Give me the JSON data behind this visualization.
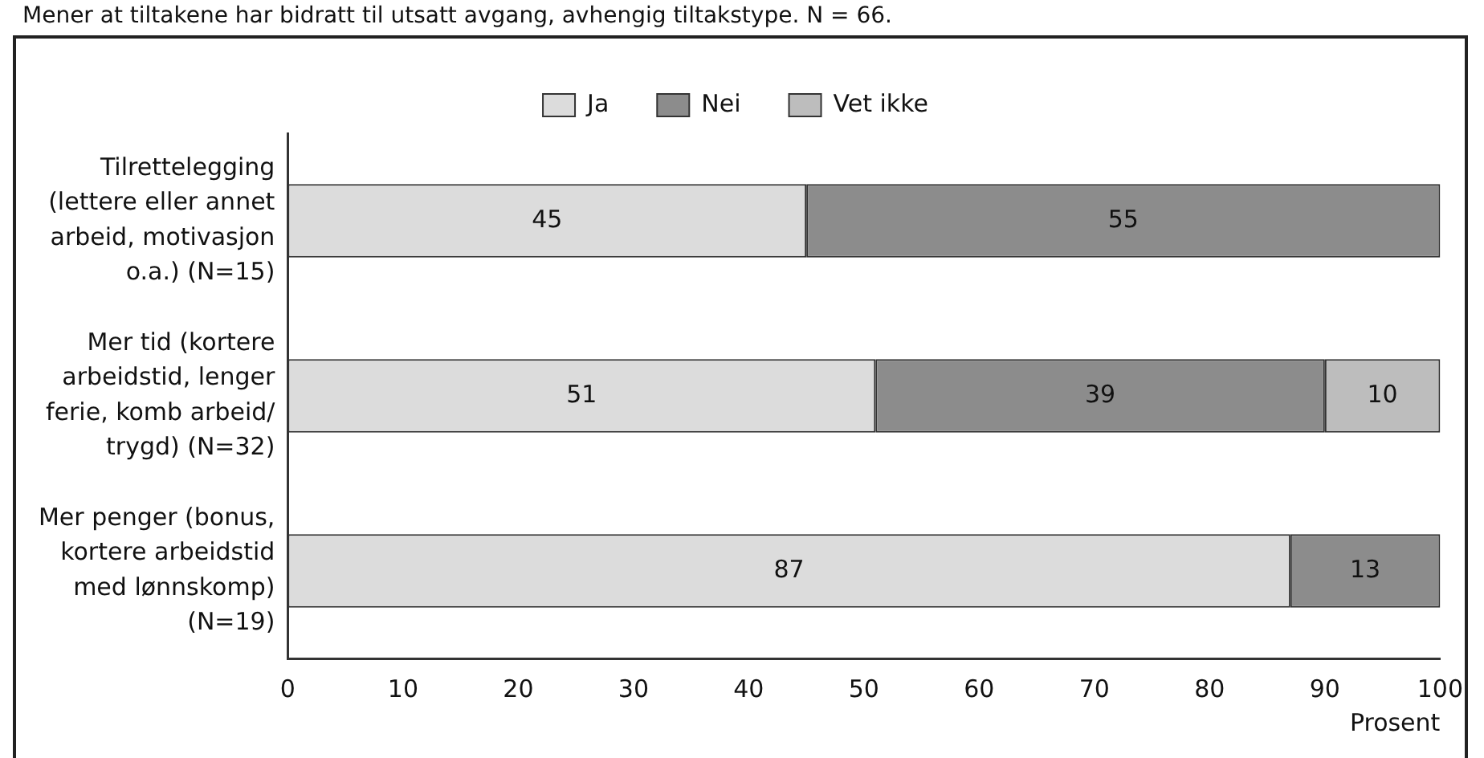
{
  "chart_data": {
    "type": "bar",
    "orientation": "horizontal",
    "stacked": true,
    "title": "Mener at tiltakene har bidratt til utsatt avgang, avhengig tiltakstype. N = 66.",
    "xlabel": "Prosent",
    "categories": [
      "Tilrettelegging (lettere eller annet arbeid, motivasjon o.a.) (N=15)",
      "Mer tid (kortere arbeidstid, lenger ferie, komb arbeid/ trygd) (N=32)",
      "Mer penger (bonus, kortere arbeidstid med lønnskomp) (N=19)"
    ],
    "series": [
      {
        "name": "Ja",
        "color": "#dcdcdc",
        "values": [
          45,
          51,
          87
        ]
      },
      {
        "name": "Nei",
        "color": "#8c8c8c",
        "values": [
          55,
          39,
          13
        ]
      },
      {
        "name": "Vet ikke",
        "color": "#bdbdbd",
        "values": [
          null,
          10,
          null
        ]
      }
    ],
    "xlim": [
      0,
      100
    ],
    "xticks": [
      0,
      10,
      20,
      30,
      40,
      50,
      60,
      70,
      80,
      90,
      100
    ],
    "data_labels": true,
    "legend": "top",
    "grid": false
  }
}
